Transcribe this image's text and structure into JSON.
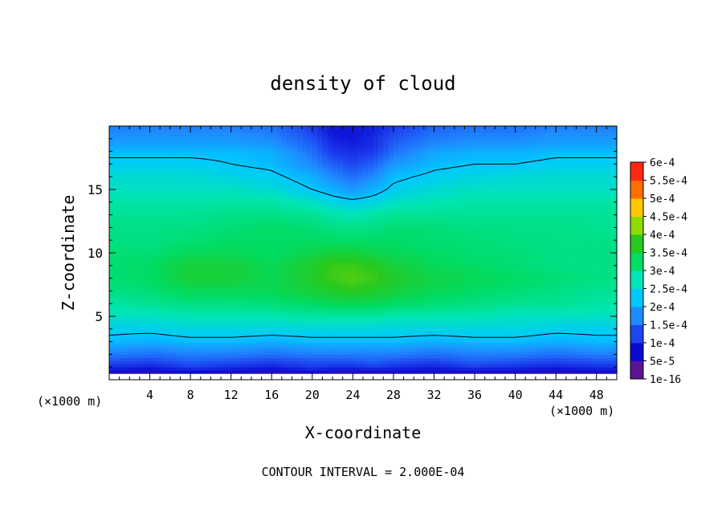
{
  "chart_data": {
    "type": "heatmap",
    "title": "density of cloud",
    "xlabel": "X-coordinate",
    "ylabel": "Z-coordinate",
    "x_unit_left": "(×1000 m)",
    "x_unit_right": "(×1000 m)",
    "footer": "CONTOUR INTERVAL = 2.000E-04",
    "xlim": [
      0,
      50
    ],
    "ylim": [
      0,
      20
    ],
    "x_ticks": [
      4,
      8,
      12,
      16,
      20,
      24,
      28,
      32,
      36,
      40,
      44,
      48
    ],
    "x_tick_labels": [
      "4",
      "8",
      "12",
      "16",
      "20",
      "24",
      "28",
      "32",
      "36",
      "40",
      "44",
      "48"
    ],
    "y_ticks": [
      5,
      10,
      15
    ],
    "y_tick_labels": [
      "5",
      "10",
      "15"
    ],
    "colorbar": {
      "labels": [
        "1e-16",
        "5e-5",
        "1e-4",
        "1.5e-4",
        "2e-4",
        "2.5e-4",
        "3e-4",
        "3.5e-4",
        "4e-4",
        "4.5e-4",
        "5e-4",
        "5.5e-4",
        "6e-4"
      ],
      "colors": [
        "#5a1496",
        "#0a0ad2",
        "#1e46f0",
        "#1e8cff",
        "#00c8ff",
        "#00e6b4",
        "#00dc64",
        "#28c81e",
        "#8cdc00",
        "#ffc800",
        "#ff6e00",
        "#ff2814",
        "#ff7878"
      ]
    },
    "field": {
      "rows_z": [
        0.5,
        1,
        1.5,
        2,
        2.5,
        3,
        4,
        5,
        6,
        7,
        8,
        9,
        10,
        11,
        12,
        13,
        14,
        15,
        16,
        17,
        18,
        18.5,
        19,
        19.5,
        20
      ],
      "cols_x": [
        0,
        4,
        8,
        12,
        16,
        20,
        22,
        24,
        26,
        28,
        32,
        36,
        40,
        44,
        48,
        50
      ],
      "values_e4": [
        [
          0.3,
          0.2,
          0.4,
          0.3,
          0.2,
          0.3,
          0.2,
          0.2,
          0.2,
          0.3,
          0.3,
          0.2,
          0.3,
          0.2,
          0.3,
          0.3
        ],
        [
          0.8,
          0.7,
          0.9,
          0.8,
          0.7,
          0.9,
          0.8,
          0.8,
          0.9,
          0.8,
          0.7,
          0.9,
          0.8,
          0.7,
          0.8,
          0.8
        ],
        [
          1.1,
          1.0,
          1.2,
          1.1,
          1.0,
          1.1,
          1.1,
          1.1,
          1.2,
          1.1,
          1.0,
          1.2,
          1.1,
          1.0,
          1.1,
          1.1
        ],
        [
          1.4,
          1.3,
          1.4,
          1.4,
          1.3,
          1.4,
          1.4,
          1.4,
          1.4,
          1.4,
          1.3,
          1.4,
          1.4,
          1.3,
          1.4,
          1.4
        ],
        [
          1.6,
          1.5,
          1.6,
          1.6,
          1.5,
          1.6,
          1.6,
          1.6,
          1.6,
          1.6,
          1.5,
          1.6,
          1.6,
          1.5,
          1.6,
          1.6
        ],
        [
          1.9,
          1.8,
          1.9,
          1.9,
          1.8,
          1.9,
          1.9,
          1.9,
          1.9,
          1.9,
          1.8,
          1.9,
          1.9,
          1.8,
          1.9,
          1.9
        ],
        [
          2.1,
          2.1,
          2.2,
          2.2,
          2.2,
          2.2,
          2.2,
          2.2,
          2.2,
          2.2,
          2.2,
          2.2,
          2.2,
          2.1,
          2.1,
          2.1
        ],
        [
          2.4,
          2.4,
          2.5,
          2.5,
          2.5,
          2.6,
          2.6,
          2.6,
          2.6,
          2.5,
          2.5,
          2.5,
          2.4,
          2.4,
          2.4,
          2.4
        ],
        [
          2.6,
          2.7,
          2.8,
          2.8,
          2.9,
          3.0,
          3.1,
          3.1,
          3.1,
          3.0,
          2.9,
          2.8,
          2.7,
          2.7,
          2.6,
          2.6
        ],
        [
          2.8,
          2.9,
          3.1,
          3.1,
          3.1,
          3.3,
          3.4,
          3.5,
          3.4,
          3.3,
          3.1,
          3.0,
          2.9,
          2.8,
          2.7,
          2.7
        ],
        [
          2.9,
          3.0,
          3.3,
          3.3,
          3.1,
          3.4,
          3.6,
          3.7,
          3.6,
          3.4,
          3.2,
          3.1,
          3.0,
          2.9,
          2.8,
          2.8
        ],
        [
          2.9,
          3.0,
          3.3,
          3.3,
          3.1,
          3.4,
          3.6,
          3.6,
          3.5,
          3.3,
          3.1,
          3.0,
          2.9,
          2.8,
          2.8,
          2.8
        ],
        [
          2.9,
          2.9,
          3.1,
          3.1,
          3.0,
          3.2,
          3.3,
          3.3,
          3.2,
          3.1,
          3.0,
          2.9,
          2.9,
          2.8,
          2.8,
          2.8
        ],
        [
          2.8,
          2.8,
          2.9,
          3.0,
          3.0,
          3.0,
          3.0,
          3.0,
          3.0,
          3.0,
          2.9,
          2.9,
          2.8,
          2.8,
          2.8,
          2.8
        ],
        [
          2.8,
          2.8,
          2.8,
          2.9,
          3.0,
          2.9,
          2.8,
          2.8,
          2.8,
          2.9,
          2.9,
          2.8,
          2.8,
          2.8,
          2.7,
          2.7
        ],
        [
          2.7,
          2.7,
          2.7,
          2.8,
          2.8,
          2.7,
          2.6,
          2.5,
          2.6,
          2.7,
          2.7,
          2.7,
          2.7,
          2.7,
          2.7,
          2.7
        ],
        [
          2.6,
          2.6,
          2.6,
          2.6,
          2.6,
          2.4,
          2.2,
          2.1,
          2.2,
          2.4,
          2.5,
          2.6,
          2.6,
          2.6,
          2.6,
          2.6
        ],
        [
          2.4,
          2.4,
          2.4,
          2.4,
          2.3,
          2.0,
          1.8,
          1.6,
          1.8,
          2.1,
          2.3,
          2.4,
          2.4,
          2.4,
          2.4,
          2.4
        ],
        [
          2.3,
          2.3,
          2.3,
          2.2,
          2.1,
          1.8,
          1.5,
          1.3,
          1.5,
          1.9,
          2.1,
          2.2,
          2.3,
          2.3,
          2.3,
          2.3
        ],
        [
          2.1,
          2.1,
          2.1,
          2.0,
          1.9,
          1.5,
          1.2,
          1.0,
          1.2,
          1.6,
          1.9,
          2.0,
          2.0,
          2.1,
          2.1,
          2.1
        ],
        [
          1.9,
          1.9,
          1.9,
          1.9,
          1.8,
          1.3,
          0.9,
          0.8,
          0.9,
          1.3,
          1.7,
          1.8,
          1.8,
          1.9,
          1.9,
          1.9
        ],
        [
          1.7,
          1.7,
          1.7,
          1.7,
          1.6,
          1.2,
          0.8,
          0.7,
          0.8,
          1.2,
          1.5,
          1.6,
          1.6,
          1.7,
          1.7,
          1.7
        ],
        [
          1.6,
          1.6,
          1.6,
          1.6,
          1.5,
          1.1,
          0.7,
          0.6,
          0.8,
          1.1,
          1.4,
          1.5,
          1.5,
          1.6,
          1.6,
          1.6
        ],
        [
          1.5,
          1.5,
          1.5,
          1.5,
          1.4,
          1.0,
          0.6,
          0.6,
          0.7,
          1.0,
          1.3,
          1.4,
          1.4,
          1.5,
          1.5,
          1.5
        ],
        [
          1.4,
          1.4,
          1.4,
          1.4,
          1.3,
          0.9,
          0.6,
          0.6,
          0.7,
          0.9,
          1.2,
          1.3,
          1.3,
          1.4,
          1.4,
          1.4
        ]
      ]
    },
    "contours_e4": [
      2.0
    ]
  }
}
